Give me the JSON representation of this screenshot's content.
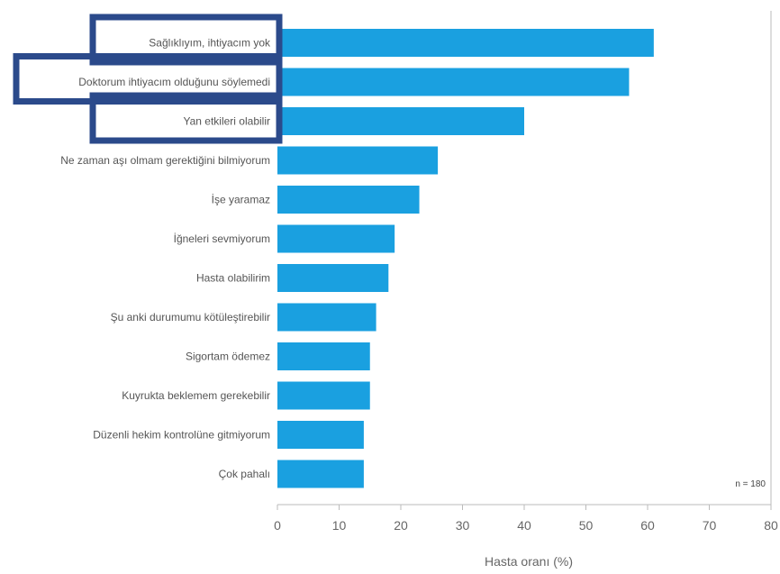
{
  "chart_data": {
    "type": "bar",
    "orientation": "horizontal",
    "categories": [
      "Sağlıklıyım, ihtiyacım yok",
      "Doktorum ihtiyacım olduğunu söylemedi",
      "Yan etkileri olabilir",
      "Ne zaman aşı olmam gerektiğini bilmiyorum",
      "İşe yaramaz",
      "İğneleri sevmiyorum",
      "Hasta olabilirim",
      "Şu anki durumumu kötüleştirebilir",
      "Sigortam ödemez",
      "Kuyrukta beklemem gerekebilir",
      "Düzenli hekim kontrolüne gitmiyorum",
      "Çok pahalı"
    ],
    "values": [
      61,
      57,
      40,
      26,
      23,
      19,
      18,
      16,
      15,
      15,
      14,
      14
    ],
    "highlighted": [
      0,
      1,
      2
    ],
    "xlabel": "Hasta oranı (%)",
    "xlim": [
      0,
      80
    ],
    "xticks": [
      0,
      10,
      20,
      30,
      40,
      50,
      60,
      70,
      80
    ],
    "note": "n = 180",
    "colors": {
      "bar": "#1aa0e0",
      "highlight_box": "#2b4a8b",
      "axis": "#bbbbbb"
    }
  }
}
